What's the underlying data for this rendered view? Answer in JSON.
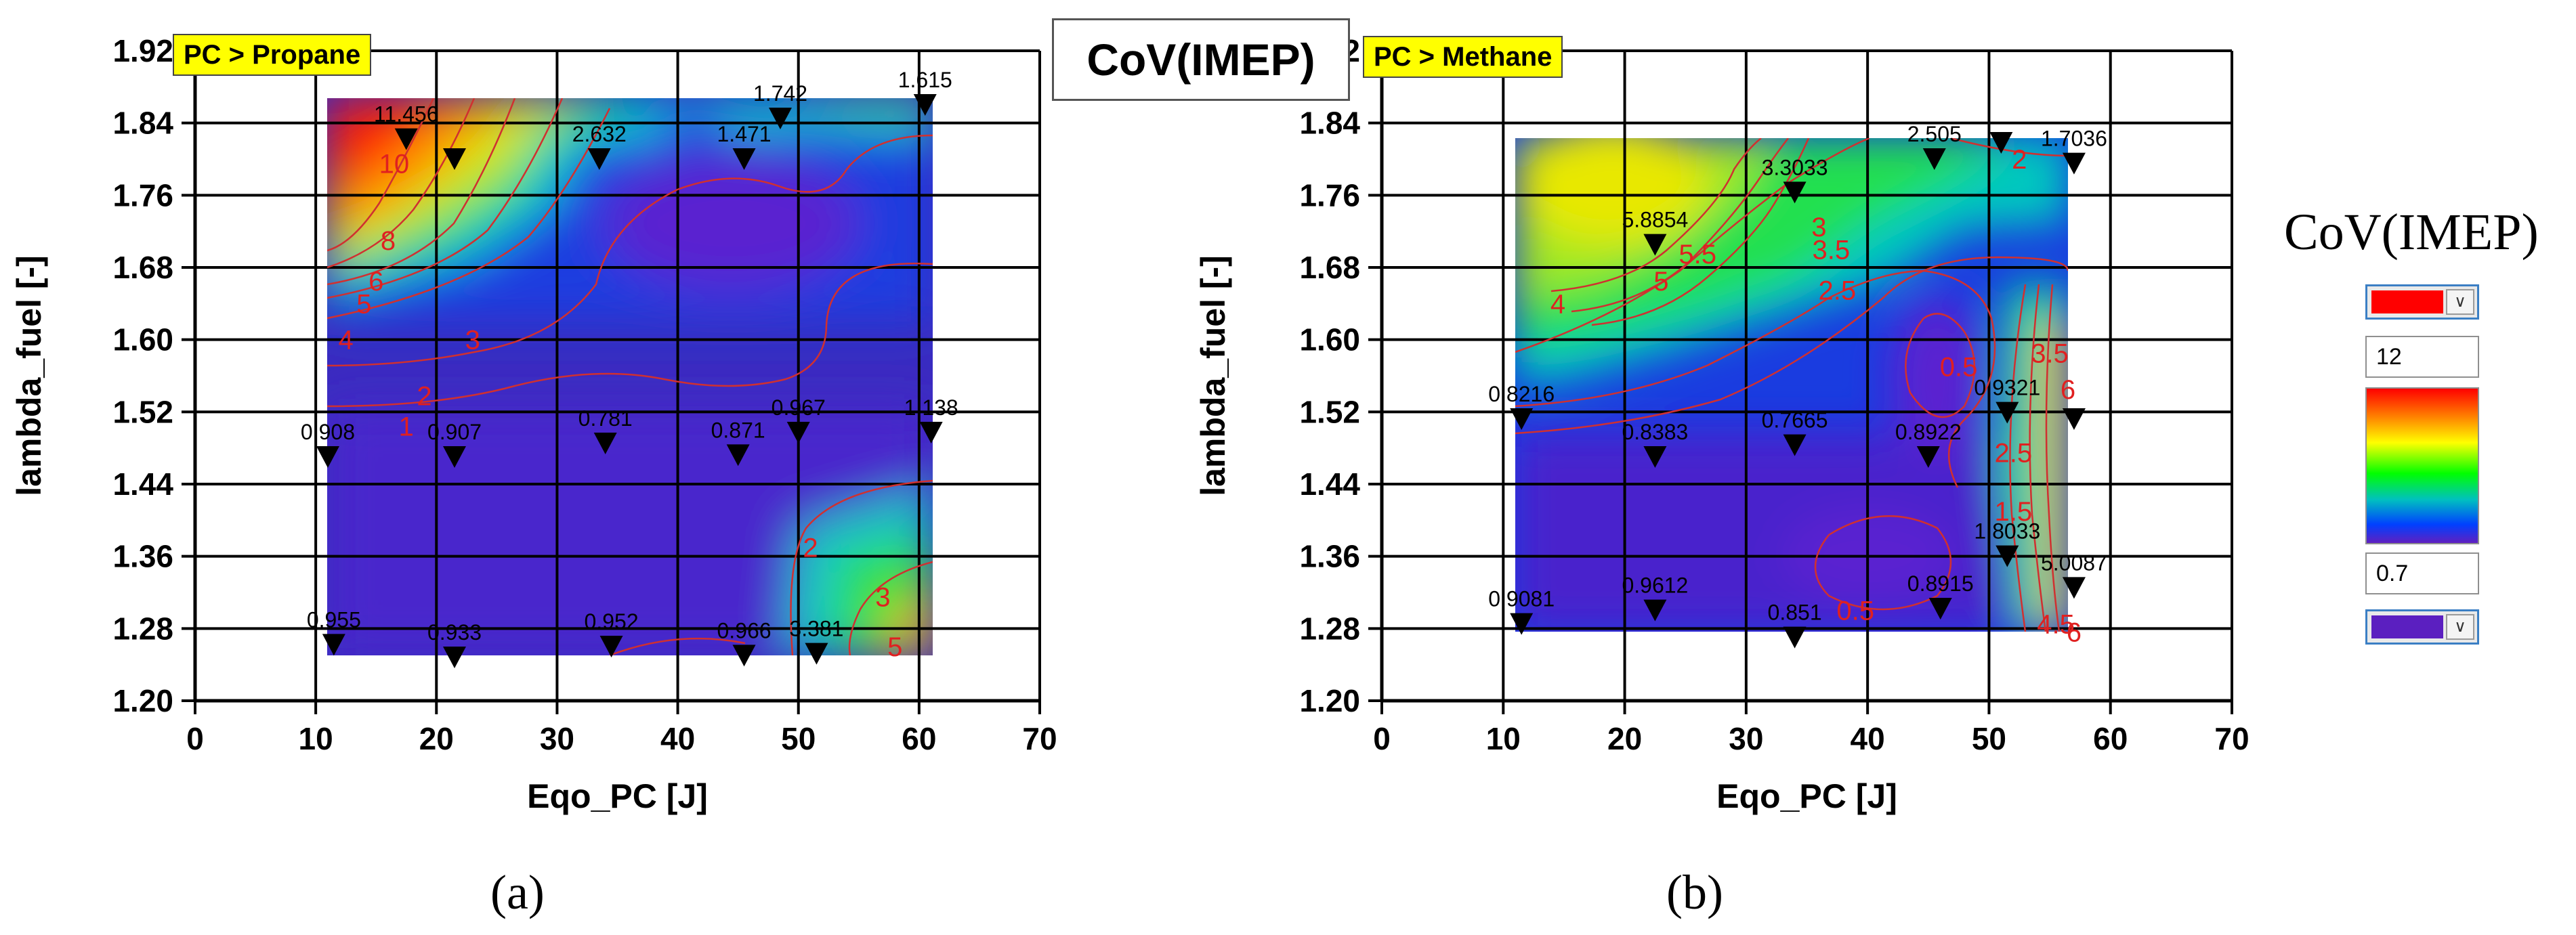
{
  "figure_title": "CoV(IMEP)",
  "legend": {
    "title": "CoV(IMEP)",
    "max_value": "12",
    "min_value": "0.7",
    "max_color": "#ff0000",
    "min_color": "#5b1fc0",
    "dropdown_icon": "chevron-down-icon"
  },
  "chart_data": [
    {
      "type": "contour",
      "panel_label": "(a)",
      "tag": "PC > Propane",
      "xlabel": "Eqo_PC [J]",
      "ylabel": "lambda_fuel [-]",
      "xlim": [
        0,
        70
      ],
      "ylim": [
        1.2,
        1.92
      ],
      "x_ticks": [
        "0",
        "10",
        "20",
        "30",
        "40",
        "50",
        "60",
        "70"
      ],
      "y_ticks": [
        "1.20",
        "1.28",
        "1.36",
        "1.44",
        "1.52",
        "1.60",
        "1.68",
        "1.76",
        "1.84",
        "1.92"
      ],
      "data_extent": {
        "x": [
          11,
          61
        ],
        "y": [
          1.25,
          1.865
        ]
      },
      "points": [
        {
          "x": 17.5,
          "y": 1.822,
          "label": "11.456"
        },
        {
          "x": 21.5,
          "y": 1.8,
          "label": ""
        },
        {
          "x": 33.5,
          "y": 1.8,
          "label": "2.632"
        },
        {
          "x": 45.5,
          "y": 1.8,
          "label": "1.471"
        },
        {
          "x": 48.5,
          "y": 1.845,
          "label": "1.742"
        },
        {
          "x": 60.5,
          "y": 1.86,
          "label": "1.615"
        },
        {
          "x": 11,
          "y": 1.47,
          "label": "0.908"
        },
        {
          "x": 21.5,
          "y": 1.47,
          "label": "0.907"
        },
        {
          "x": 34,
          "y": 1.485,
          "label": "0.781"
        },
        {
          "x": 45,
          "y": 1.472,
          "label": "0.871"
        },
        {
          "x": 50,
          "y": 1.497,
          "label": "0.967"
        },
        {
          "x": 61,
          "y": 1.497,
          "label": "1.138"
        },
        {
          "x": 11.5,
          "y": 1.262,
          "label": "0.955"
        },
        {
          "x": 21.5,
          "y": 1.248,
          "label": "0.933"
        },
        {
          "x": 34.5,
          "y": 1.26,
          "label": "0.952"
        },
        {
          "x": 45.5,
          "y": 1.25,
          "label": "0.966"
        },
        {
          "x": 51.5,
          "y": 1.252,
          "label": "3.381"
        }
      ],
      "contour_labels": [
        {
          "x": 16.5,
          "y": 1.795,
          "label": "10"
        },
        {
          "x": 16,
          "y": 1.71,
          "label": "8"
        },
        {
          "x": 15,
          "y": 1.665,
          "label": "6"
        },
        {
          "x": 14,
          "y": 1.64,
          "label": "5"
        },
        {
          "x": 12.5,
          "y": 1.6,
          "label": "4"
        },
        {
          "x": 23,
          "y": 1.6,
          "label": "3"
        },
        {
          "x": 19,
          "y": 1.538,
          "label": "2"
        },
        {
          "x": 17.5,
          "y": 1.504,
          "label": "1"
        },
        {
          "x": 51,
          "y": 1.37,
          "label": "2"
        },
        {
          "x": 57,
          "y": 1.315,
          "label": "3"
        },
        {
          "x": 58,
          "y": 1.26,
          "label": "5"
        }
      ]
    },
    {
      "type": "contour",
      "panel_label": "(b)",
      "tag": "PC > Methane",
      "xlabel": "Eqo_PC [J]",
      "ylabel": "lambda_fuel [-]",
      "xlim": [
        0,
        70
      ],
      "ylim": [
        1.2,
        1.92
      ],
      "x_ticks": [
        "0",
        "10",
        "20",
        "30",
        "40",
        "50",
        "60",
        "70"
      ],
      "y_ticks": [
        "1.20",
        "1.28",
        "1.36",
        "1.44",
        "1.52",
        "1.60",
        "1.68",
        "1.76",
        "1.84",
        "1.92"
      ],
      "data_extent": {
        "x": [
          11.5,
          57
        ],
        "y": [
          1.27,
          1.82
        ]
      },
      "points": [
        {
          "x": 22.5,
          "y": 1.705,
          "label": "5.8854"
        },
        {
          "x": 34,
          "y": 1.763,
          "label": "3.3033"
        },
        {
          "x": 45.5,
          "y": 1.8,
          "label": "2.505"
        },
        {
          "x": 51,
          "y": 1.818,
          "label": ""
        },
        {
          "x": 57,
          "y": 1.795,
          "label": "1.7036"
        },
        {
          "x": 11.5,
          "y": 1.512,
          "label": "0.8216"
        },
        {
          "x": 22.5,
          "y": 1.47,
          "label": "0.8383"
        },
        {
          "x": 34,
          "y": 1.483,
          "label": "0.7665"
        },
        {
          "x": 45,
          "y": 1.47,
          "label": "0.8922"
        },
        {
          "x": 51.5,
          "y": 1.519,
          "label": "0.9321"
        },
        {
          "x": 57,
          "y": 1.512,
          "label": ""
        },
        {
          "x": 51.5,
          "y": 1.36,
          "label": "1.8033"
        },
        {
          "x": 57,
          "y": 1.325,
          "label": "5.0087"
        },
        {
          "x": 11.5,
          "y": 1.285,
          "label": "0.9081"
        },
        {
          "x": 22.5,
          "y": 1.3,
          "label": "0.9612"
        },
        {
          "x": 34,
          "y": 1.27,
          "label": "0.851"
        },
        {
          "x": 46,
          "y": 1.302,
          "label": "0.8915"
        }
      ],
      "contour_labels": [
        {
          "x": 52.5,
          "y": 1.8,
          "label": "2"
        },
        {
          "x": 36,
          "y": 1.725,
          "label": "3"
        },
        {
          "x": 37,
          "y": 1.7,
          "label": "3.5"
        },
        {
          "x": 26,
          "y": 1.695,
          "label": "5.5"
        },
        {
          "x": 23,
          "y": 1.665,
          "label": "5"
        },
        {
          "x": 14.5,
          "y": 1.64,
          "label": "4"
        },
        {
          "x": 37.5,
          "y": 1.655,
          "label": "2.5"
        },
        {
          "x": 47.5,
          "y": 1.57,
          "label": "0.5"
        },
        {
          "x": 55,
          "y": 1.585,
          "label": "3.5"
        },
        {
          "x": 56.5,
          "y": 1.545,
          "label": "6"
        },
        {
          "x": 52,
          "y": 1.475,
          "label": "2.5"
        },
        {
          "x": 52,
          "y": 1.41,
          "label": "1.5"
        },
        {
          "x": 39,
          "y": 1.3,
          "label": "0.5"
        },
        {
          "x": 55.5,
          "y": 1.285,
          "label": "4.5"
        },
        {
          "x": 57,
          "y": 1.276,
          "label": "6"
        }
      ]
    }
  ]
}
